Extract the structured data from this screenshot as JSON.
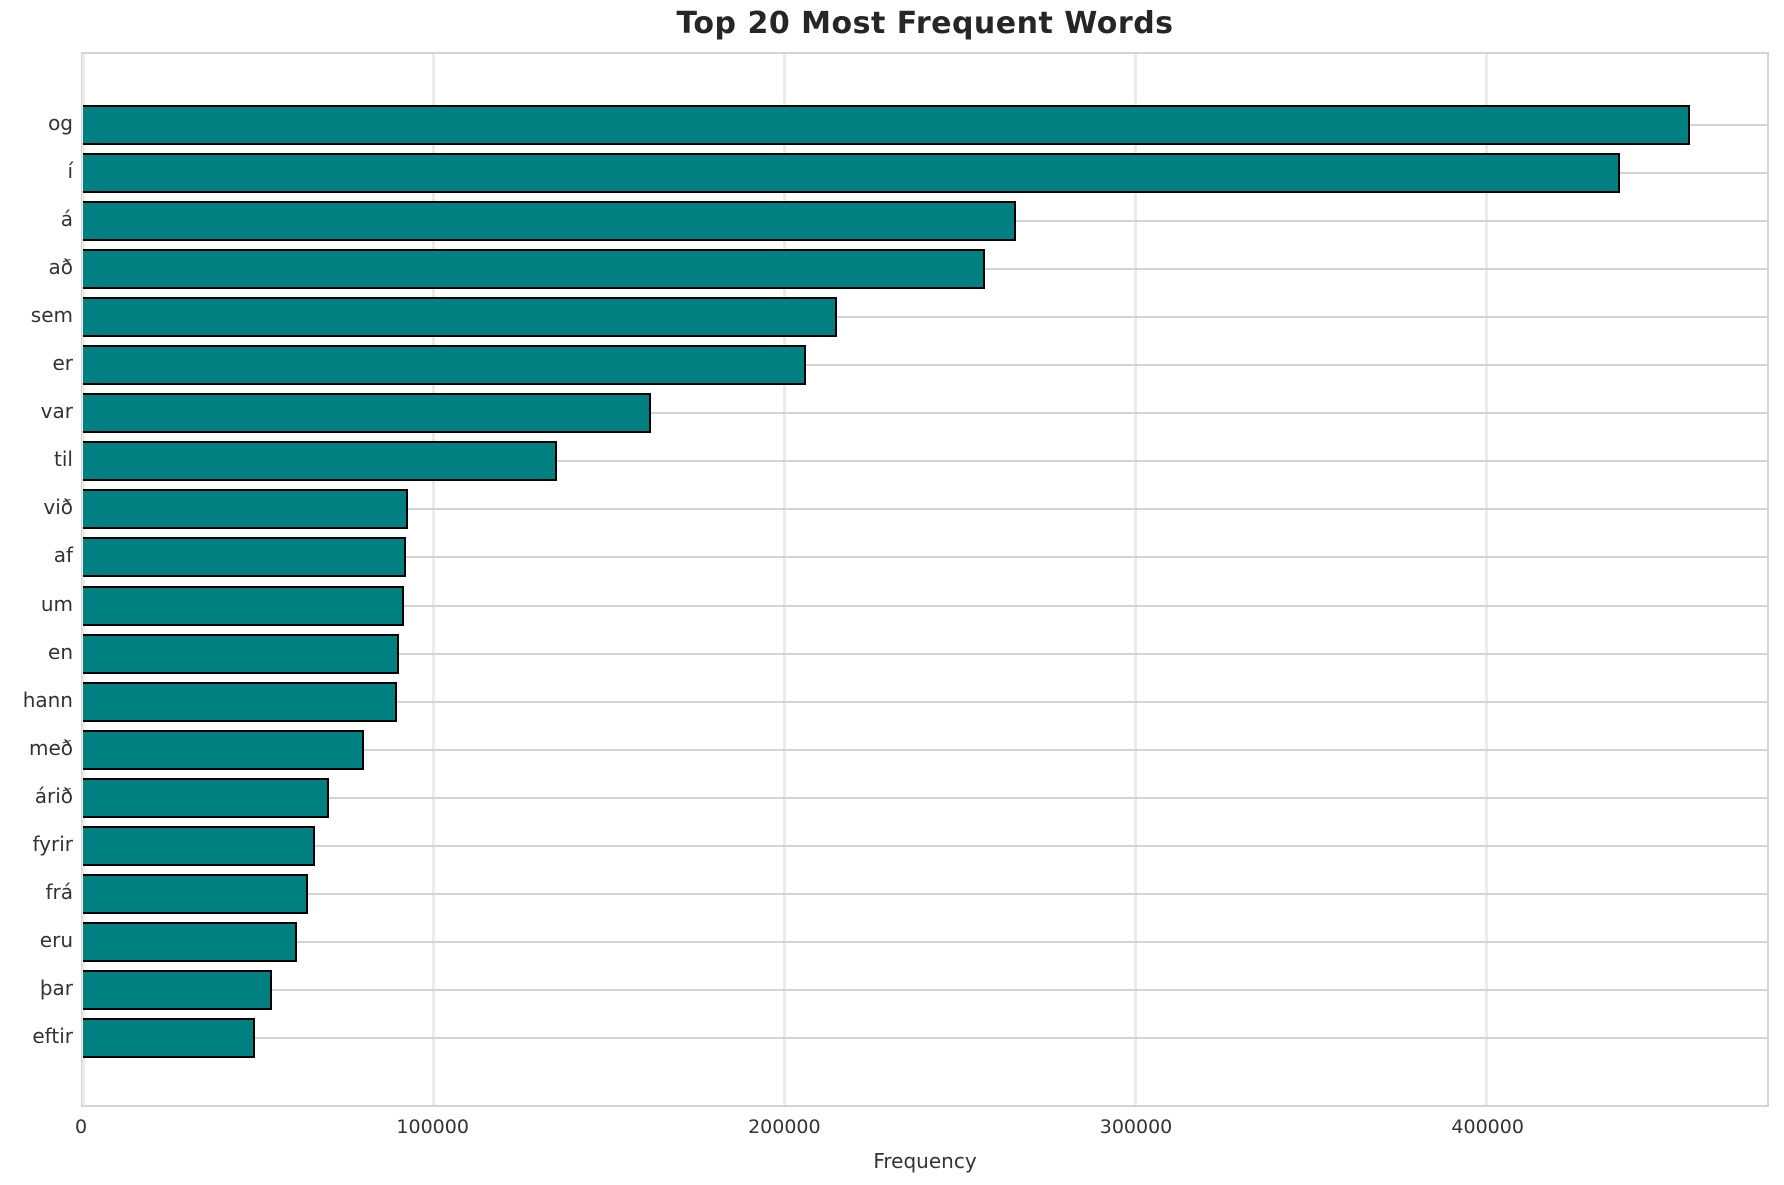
{
  "figure": {
    "title": "Top 20 Most Frequent Words",
    "background": "#ffffff"
  },
  "chart_data": {
    "type": "bar",
    "orientation": "horizontal",
    "title": "Top 20 Most Frequent Words",
    "xlabel": "Frequency",
    "ylabel": "",
    "categories": [
      "og",
      "í",
      "á",
      "að",
      "sem",
      "er",
      "var",
      "til",
      "við",
      "af",
      "um",
      "en",
      "hann",
      "með",
      "árið",
      "fyrir",
      "frá",
      "eru",
      "þar",
      "eftir"
    ],
    "values": [
      458000,
      438000,
      266000,
      257000,
      215000,
      206000,
      162000,
      135000,
      92500,
      92000,
      91500,
      90000,
      89500,
      80000,
      70000,
      66000,
      64000,
      61000,
      54000,
      49000
    ],
    "xlim": [
      0,
      480000
    ],
    "xticks": [
      0,
      100000,
      200000,
      300000,
      400000
    ],
    "grid": true,
    "legend": "none",
    "bar_color": "#008080",
    "bar_edge_color": "#000000",
    "grid_color_h": "#d4d4d4",
    "grid_color_v": "#ebebeb"
  }
}
